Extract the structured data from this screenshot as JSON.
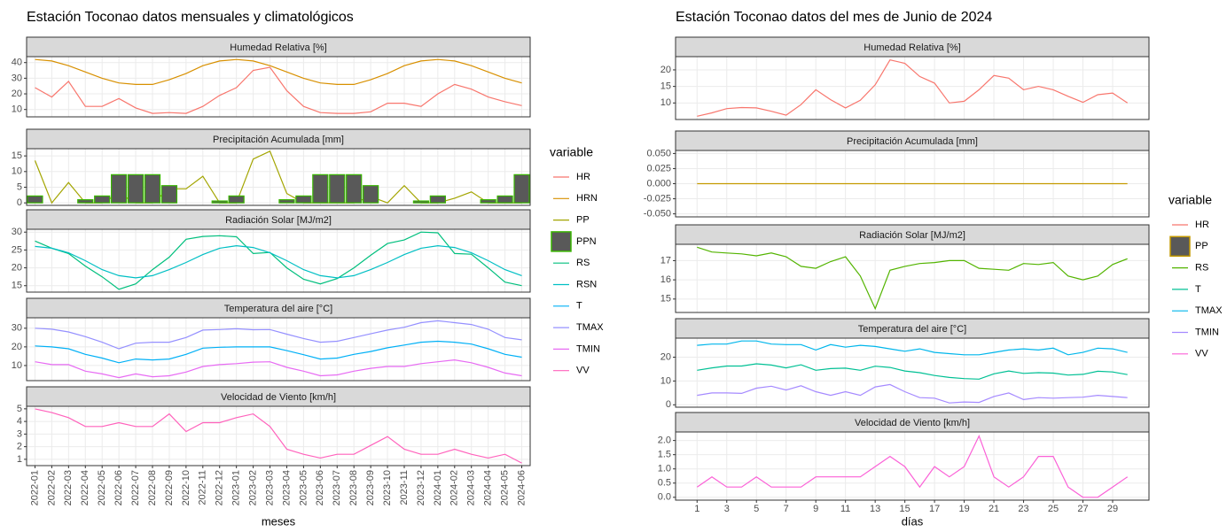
{
  "chart_data": [
    {
      "type": "line",
      "title": "Estación Toconao datos mensuales y climatológicos",
      "xlabel": "meses",
      "legend_title": "variable",
      "categories": [
        "2022-01",
        "2022-02",
        "2022-03",
        "2022-04",
        "2022-05",
        "2022-06",
        "2022-07",
        "2022-08",
        "2022-09",
        "2022-10",
        "2022-11",
        "2022-12",
        "2023-01",
        "2023-02",
        "2023-03",
        "2023-04",
        "2023-05",
        "2023-06",
        "2023-07",
        "2023-08",
        "2023-09",
        "2023-10",
        "2023-11",
        "2023-12",
        "2024-01",
        "2024-02",
        "2024-03",
        "2024-04",
        "2024-05",
        "2024-06"
      ],
      "panels": [
        {
          "title": "Humedad Relativa [%]",
          "ylim": [
            5.3,
            43.8
          ],
          "yticks": [
            10,
            20,
            30,
            40
          ],
          "series": [
            {
              "name": "HR",
              "color": "#F8766D",
              "values": [
                24,
                18,
                28,
                12,
                12,
                17,
                11,
                7.5,
                8,
                7.5,
                12,
                19,
                24,
                35,
                37,
                22,
                12,
                8,
                7.5,
                7.5,
                8.5,
                14,
                14,
                12,
                20,
                26,
                23,
                18,
                15,
                12.5
              ]
            },
            {
              "name": "HRN",
              "color": "#D89000",
              "values": [
                42,
                41,
                38,
                34,
                30,
                27,
                26,
                26,
                29,
                33,
                38,
                41,
                42,
                41,
                38,
                34,
                30,
                27,
                26,
                26,
                29,
                33,
                38,
                41,
                42,
                41,
                38,
                34,
                30,
                27
              ]
            }
          ]
        },
        {
          "title": "Precipitación Acumulada [mm]",
          "ylim": [
            -0.8,
            17.3
          ],
          "yticks": [
            0,
            5,
            10,
            15
          ],
          "series": [
            {
              "name": "PP",
              "color": "#A3A500",
              "values": [
                13.5,
                0,
                6.5,
                0,
                0,
                3,
                0,
                0,
                4.5,
                4.5,
                8.5,
                0,
                0,
                14,
                16.5,
                3,
                0,
                0,
                0,
                0,
                2,
                0,
                5.5,
                0,
                0,
                1.5,
                3.5,
                0,
                0,
                0
              ]
            },
            {
              "name": "PPN",
              "color": "#39B600",
              "fill": "#595959",
              "kind": "bar",
              "values": [
                2.2,
                0,
                0,
                1,
                2.2,
                9,
                9,
                9,
                5.5,
                0,
                0,
                0.6,
                2.2,
                0,
                0,
                1,
                2.2,
                9,
                9,
                9,
                5.5,
                0,
                0,
                0.6,
                2.2,
                0,
                0,
                1,
                2.2,
                9
              ]
            }
          ]
        },
        {
          "title": "Radiación Solar [MJ/m2]",
          "ylim": [
            13.2,
            30.8
          ],
          "yticks": [
            15,
            20,
            25,
            30
          ],
          "series": [
            {
              "name": "RS",
              "color": "#00BF7D",
              "values": [
                27.5,
                25.5,
                24,
                20.5,
                17.5,
                14,
                15.5,
                19.5,
                23,
                28,
                28.8,
                29,
                28.7,
                24,
                24.3,
                20,
                16.8,
                15.5,
                17,
                20,
                23.5,
                26.8,
                27.8,
                30,
                29.8,
                24,
                23.8,
                20,
                16,
                15
              ]
            },
            {
              "name": "RSN",
              "color": "#00BFC4",
              "values": [
                26,
                25.5,
                24.2,
                22,
                19.5,
                17.8,
                17.2,
                17.8,
                19.5,
                21.5,
                23.7,
                25.5,
                26.2,
                25.7,
                24.2,
                22,
                19.5,
                17.8,
                17.2,
                17.8,
                19.5,
                21.5,
                23.7,
                25.5,
                26.2,
                25.7,
                24.2,
                22,
                19.5,
                17.8
              ]
            }
          ]
        },
        {
          "title": "Temperatura del aire [°C]",
          "ylim": [
            1.9,
            35.6
          ],
          "yticks": [
            10,
            20,
            30
          ],
          "series": [
            {
              "name": "T",
              "color": "#00B0F6",
              "values": [
                20.5,
                20,
                19,
                16,
                14,
                11.5,
                13.5,
                13,
                13.5,
                16,
                19.3,
                19.8,
                20,
                20,
                20,
                18,
                15.8,
                13.5,
                14,
                16,
                17.5,
                19.5,
                21,
                22.5,
                23,
                22.5,
                21.5,
                19,
                16,
                14.5
              ]
            },
            {
              "name": "TMAX",
              "color": "#9590FF",
              "values": [
                30,
                29.5,
                28,
                25.5,
                22.5,
                19,
                22,
                22.5,
                22.5,
                25,
                29,
                29.3,
                29.7,
                29.2,
                29.3,
                26.8,
                24.5,
                22.5,
                23,
                25,
                27,
                29,
                30.5,
                33,
                34,
                33,
                32,
                29.5,
                25,
                23.8
              ]
            },
            {
              "name": "TMIN",
              "color": "#E76BF3",
              "values": [
                12,
                10.5,
                10.5,
                7,
                5.5,
                3.5,
                5.5,
                4,
                4.5,
                6.5,
                9.5,
                10.5,
                11,
                11.8,
                12,
                9,
                7,
                4.5,
                5,
                7,
                8.5,
                9.5,
                9.5,
                11,
                12,
                13,
                11.5,
                9,
                6,
                4.5
              ]
            }
          ]
        },
        {
          "title": "Velocidad de Viento [km/h]",
          "ylim": [
            0.5,
            5.2
          ],
          "yticks": [
            1,
            2,
            3,
            4,
            5
          ],
          "series": [
            {
              "name": "VV",
              "color": "#FF62BC",
              "values": [
                5,
                4.7,
                4.3,
                3.6,
                3.6,
                3.9,
                3.6,
                3.6,
                4.6,
                3.2,
                3.9,
                3.9,
                4.3,
                4.6,
                3.6,
                1.8,
                1.4,
                1.1,
                1.4,
                1.4,
                2.1,
                2.8,
                1.8,
                1.4,
                1.4,
                1.8,
                1.4,
                1.1,
                1.4,
                0.7
              ]
            }
          ]
        }
      ]
    },
    {
      "type": "line",
      "title": "Estación Toconao datos del mes de Junio de 2024",
      "xlabel": "días",
      "legend_title": "variable",
      "x": [
        1,
        2,
        3,
        4,
        5,
        6,
        7,
        8,
        9,
        10,
        11,
        12,
        13,
        14,
        15,
        16,
        17,
        18,
        19,
        20,
        21,
        22,
        23,
        24,
        25,
        26,
        27,
        28,
        29,
        30
      ],
      "xlim": [
        -0.45,
        31.45
      ],
      "xticks": [
        1,
        3,
        5,
        7,
        9,
        11,
        13,
        15,
        17,
        19,
        21,
        23,
        25,
        27,
        29
      ],
      "panels": [
        {
          "title": "Humedad Relativa [%]",
          "ylim": [
            5,
            24
          ],
          "yticks": [
            10,
            15,
            20
          ],
          "series": [
            {
              "name": "HR",
              "color": "#F8766D",
              "values": [
                6,
                7,
                8.3,
                8.6,
                8.5,
                7.5,
                6.3,
                9.5,
                14,
                11,
                8.5,
                10.8,
                15.5,
                23,
                22,
                18,
                16,
                10,
                10.5,
                14,
                18.3,
                17.5,
                14,
                15,
                14,
                12,
                10.2,
                12.5,
                13,
                10
              ]
            }
          ]
        },
        {
          "title": "Precipitación Acumulada [mm]",
          "ylim": [
            -0.055,
            0.055
          ],
          "yticks": [
            {
              "value": -0.05,
              "label": "-0.050"
            },
            {
              "value": -0.025,
              "label": "-0.025"
            },
            {
              "value": 0,
              "label": "0.000"
            },
            {
              "value": 0.025,
              "label": "0.025"
            },
            {
              "value": 0.05,
              "label": "0.050"
            }
          ],
          "series": [
            {
              "name": "PP",
              "color": "#C49A00",
              "legend_fill": "#595959",
              "values": [
                0,
                0,
                0,
                0,
                0,
                0,
                0,
                0,
                0,
                0,
                0,
                0,
                0,
                0,
                0,
                0,
                0,
                0,
                0,
                0,
                0,
                0,
                0,
                0,
                0,
                0,
                0,
                0,
                0,
                0
              ]
            }
          ]
        },
        {
          "title": "Radiación Solar [MJ/m2]",
          "ylim": [
            14.3,
            17.85
          ],
          "yticks": [
            15,
            16,
            17
          ],
          "series": [
            {
              "name": "RS",
              "color": "#53B400",
              "values": [
                17.7,
                17.45,
                17.4,
                17.35,
                17.25,
                17.4,
                17.2,
                16.7,
                16.6,
                16.95,
                17.2,
                16.2,
                14.5,
                16.5,
                16.7,
                16.85,
                16.9,
                17,
                17,
                16.6,
                16.55,
                16.5,
                16.85,
                16.8,
                16.9,
                16.2,
                16,
                16.2,
                16.8,
                17.1
              ]
            }
          ]
        },
        {
          "title": "Temperatura del aire [°C]",
          "ylim": [
            -1,
            28
          ],
          "yticks": [
            0,
            10,
            20
          ],
          "series": [
            {
              "name": "T",
              "color": "#00C094",
              "values": [
                14.5,
                15.5,
                16.3,
                16.3,
                17.2,
                16.7,
                15.5,
                16.8,
                14.5,
                15.2,
                15.4,
                14.5,
                16.2,
                15.7,
                14.2,
                13.5,
                12.3,
                11.5,
                11,
                10.8,
                13,
                14.2,
                13.2,
                13.5,
                13.3,
                12.5,
                12.8,
                14.1,
                13.8,
                12.7
              ]
            },
            {
              "name": "TMAX",
              "color": "#00B6EB",
              "values": [
                25,
                25.5,
                25.5,
                26.8,
                26.8,
                25.5,
                25.3,
                25.3,
                23,
                25.3,
                24.2,
                25,
                24.5,
                23.5,
                22.5,
                23.5,
                22,
                21.5,
                21,
                21,
                22,
                23,
                23.5,
                23,
                23.8,
                21,
                22,
                23.8,
                23.5,
                22
              ]
            },
            {
              "name": "TMIN",
              "color": "#A58AFF",
              "values": [
                4,
                5,
                5,
                4.8,
                7,
                7.8,
                6.2,
                8,
                5.5,
                4,
                5.5,
                4,
                7.5,
                8.5,
                5.5,
                3,
                2.8,
                0.8,
                1.2,
                1,
                3.5,
                5,
                2.2,
                3,
                2.8,
                3,
                3.2,
                4,
                3.5,
                3
              ]
            }
          ]
        },
        {
          "title": "Velocidad de Viento [km/h]",
          "ylim": [
            -0.1,
            2.3
          ],
          "yticks": [
            {
              "value": 0,
              "label": "0.0"
            },
            {
              "value": 0.5,
              "label": "0.5"
            },
            {
              "value": 1,
              "label": "1.0"
            },
            {
              "value": 1.5,
              "label": "1.5"
            },
            {
              "value": 2,
              "label": "2.0"
            }
          ],
          "series": [
            {
              "name": "VV",
              "color": "#FB61D7",
              "values": [
                0.36,
                0.72,
                0.36,
                0.36,
                0.72,
                0.36,
                0.36,
                0.36,
                0.72,
                0.72,
                0.72,
                0.72,
                1.08,
                1.44,
                1.08,
                0.36,
                1.08,
                0.72,
                1.08,
                2.16,
                0.72,
                0.36,
                0.72,
                1.44,
                1.44,
                0.36,
                0,
                0,
                0.36,
                0.72
              ]
            }
          ]
        }
      ]
    }
  ]
}
